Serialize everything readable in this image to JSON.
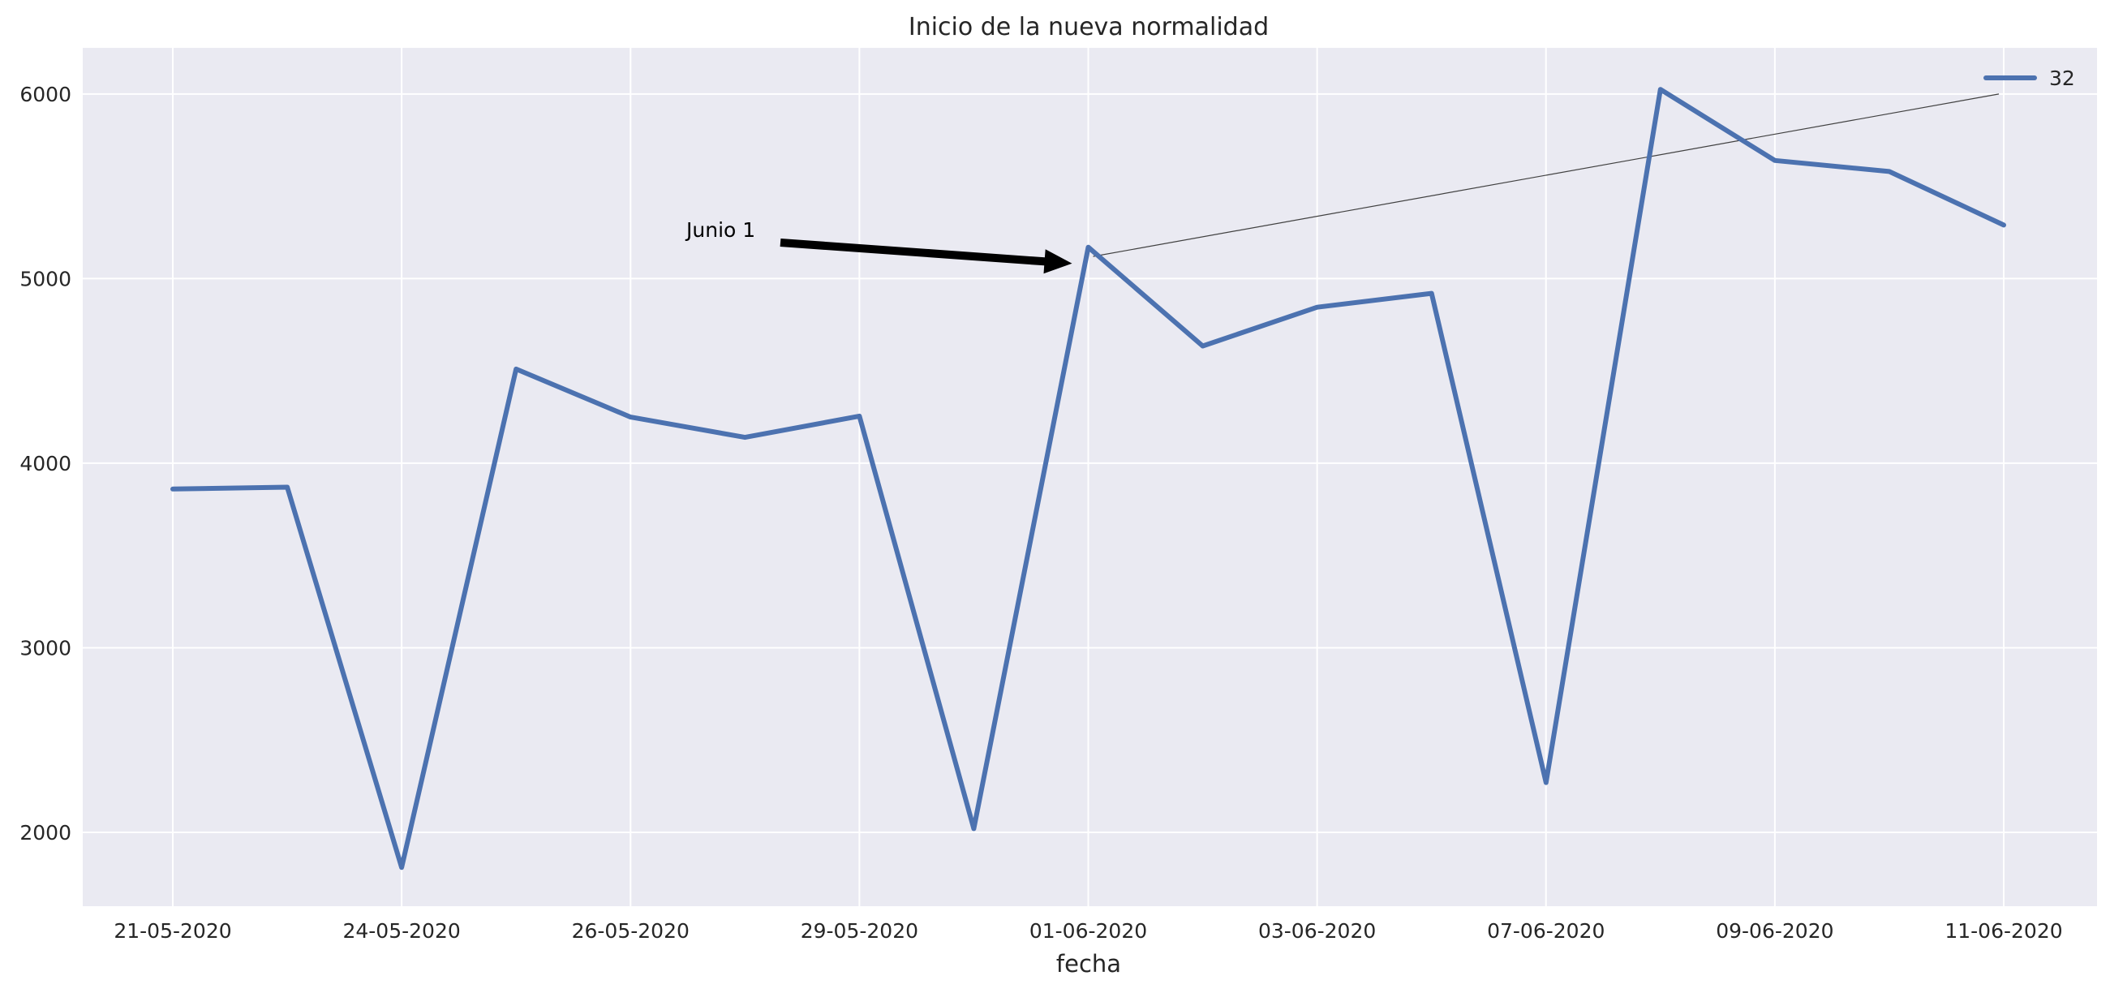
{
  "chart_data": {
    "type": "line",
    "title": "Inicio de la nueva normalidad",
    "xlabel": "fecha",
    "ylabel": "",
    "x_tick_labels": [
      "21-05-2020",
      "24-05-2020",
      "26-05-2020",
      "29-05-2020",
      "01-06-2020",
      "03-06-2020",
      "07-06-2020",
      "09-06-2020",
      "11-06-2020"
    ],
    "y_ticks": [
      2000,
      3000,
      4000,
      5000,
      6000
    ],
    "ylim": [
      1600,
      6250
    ],
    "grid": true,
    "legend_placement": "top-right",
    "series": [
      {
        "name": "32",
        "color": "#4c72b0",
        "values": [
          3860,
          3870,
          1810,
          4510,
          4250,
          4140,
          4255,
          2020,
          5170,
          4635,
          4845,
          4920,
          2270,
          6025,
          5640,
          5580,
          5290
        ]
      }
    ],
    "annotation": {
      "text": "Junio 1",
      "point_index": 8,
      "point_value": 5170,
      "trend_line": {
        "from_index": 8,
        "to_index": 16,
        "from_value": 5120,
        "to_value": 6000
      }
    },
    "colors": {
      "background": "#eaeaf2",
      "grid": "#ffffff",
      "arrow": "#000000",
      "trend": "#404040"
    }
  }
}
